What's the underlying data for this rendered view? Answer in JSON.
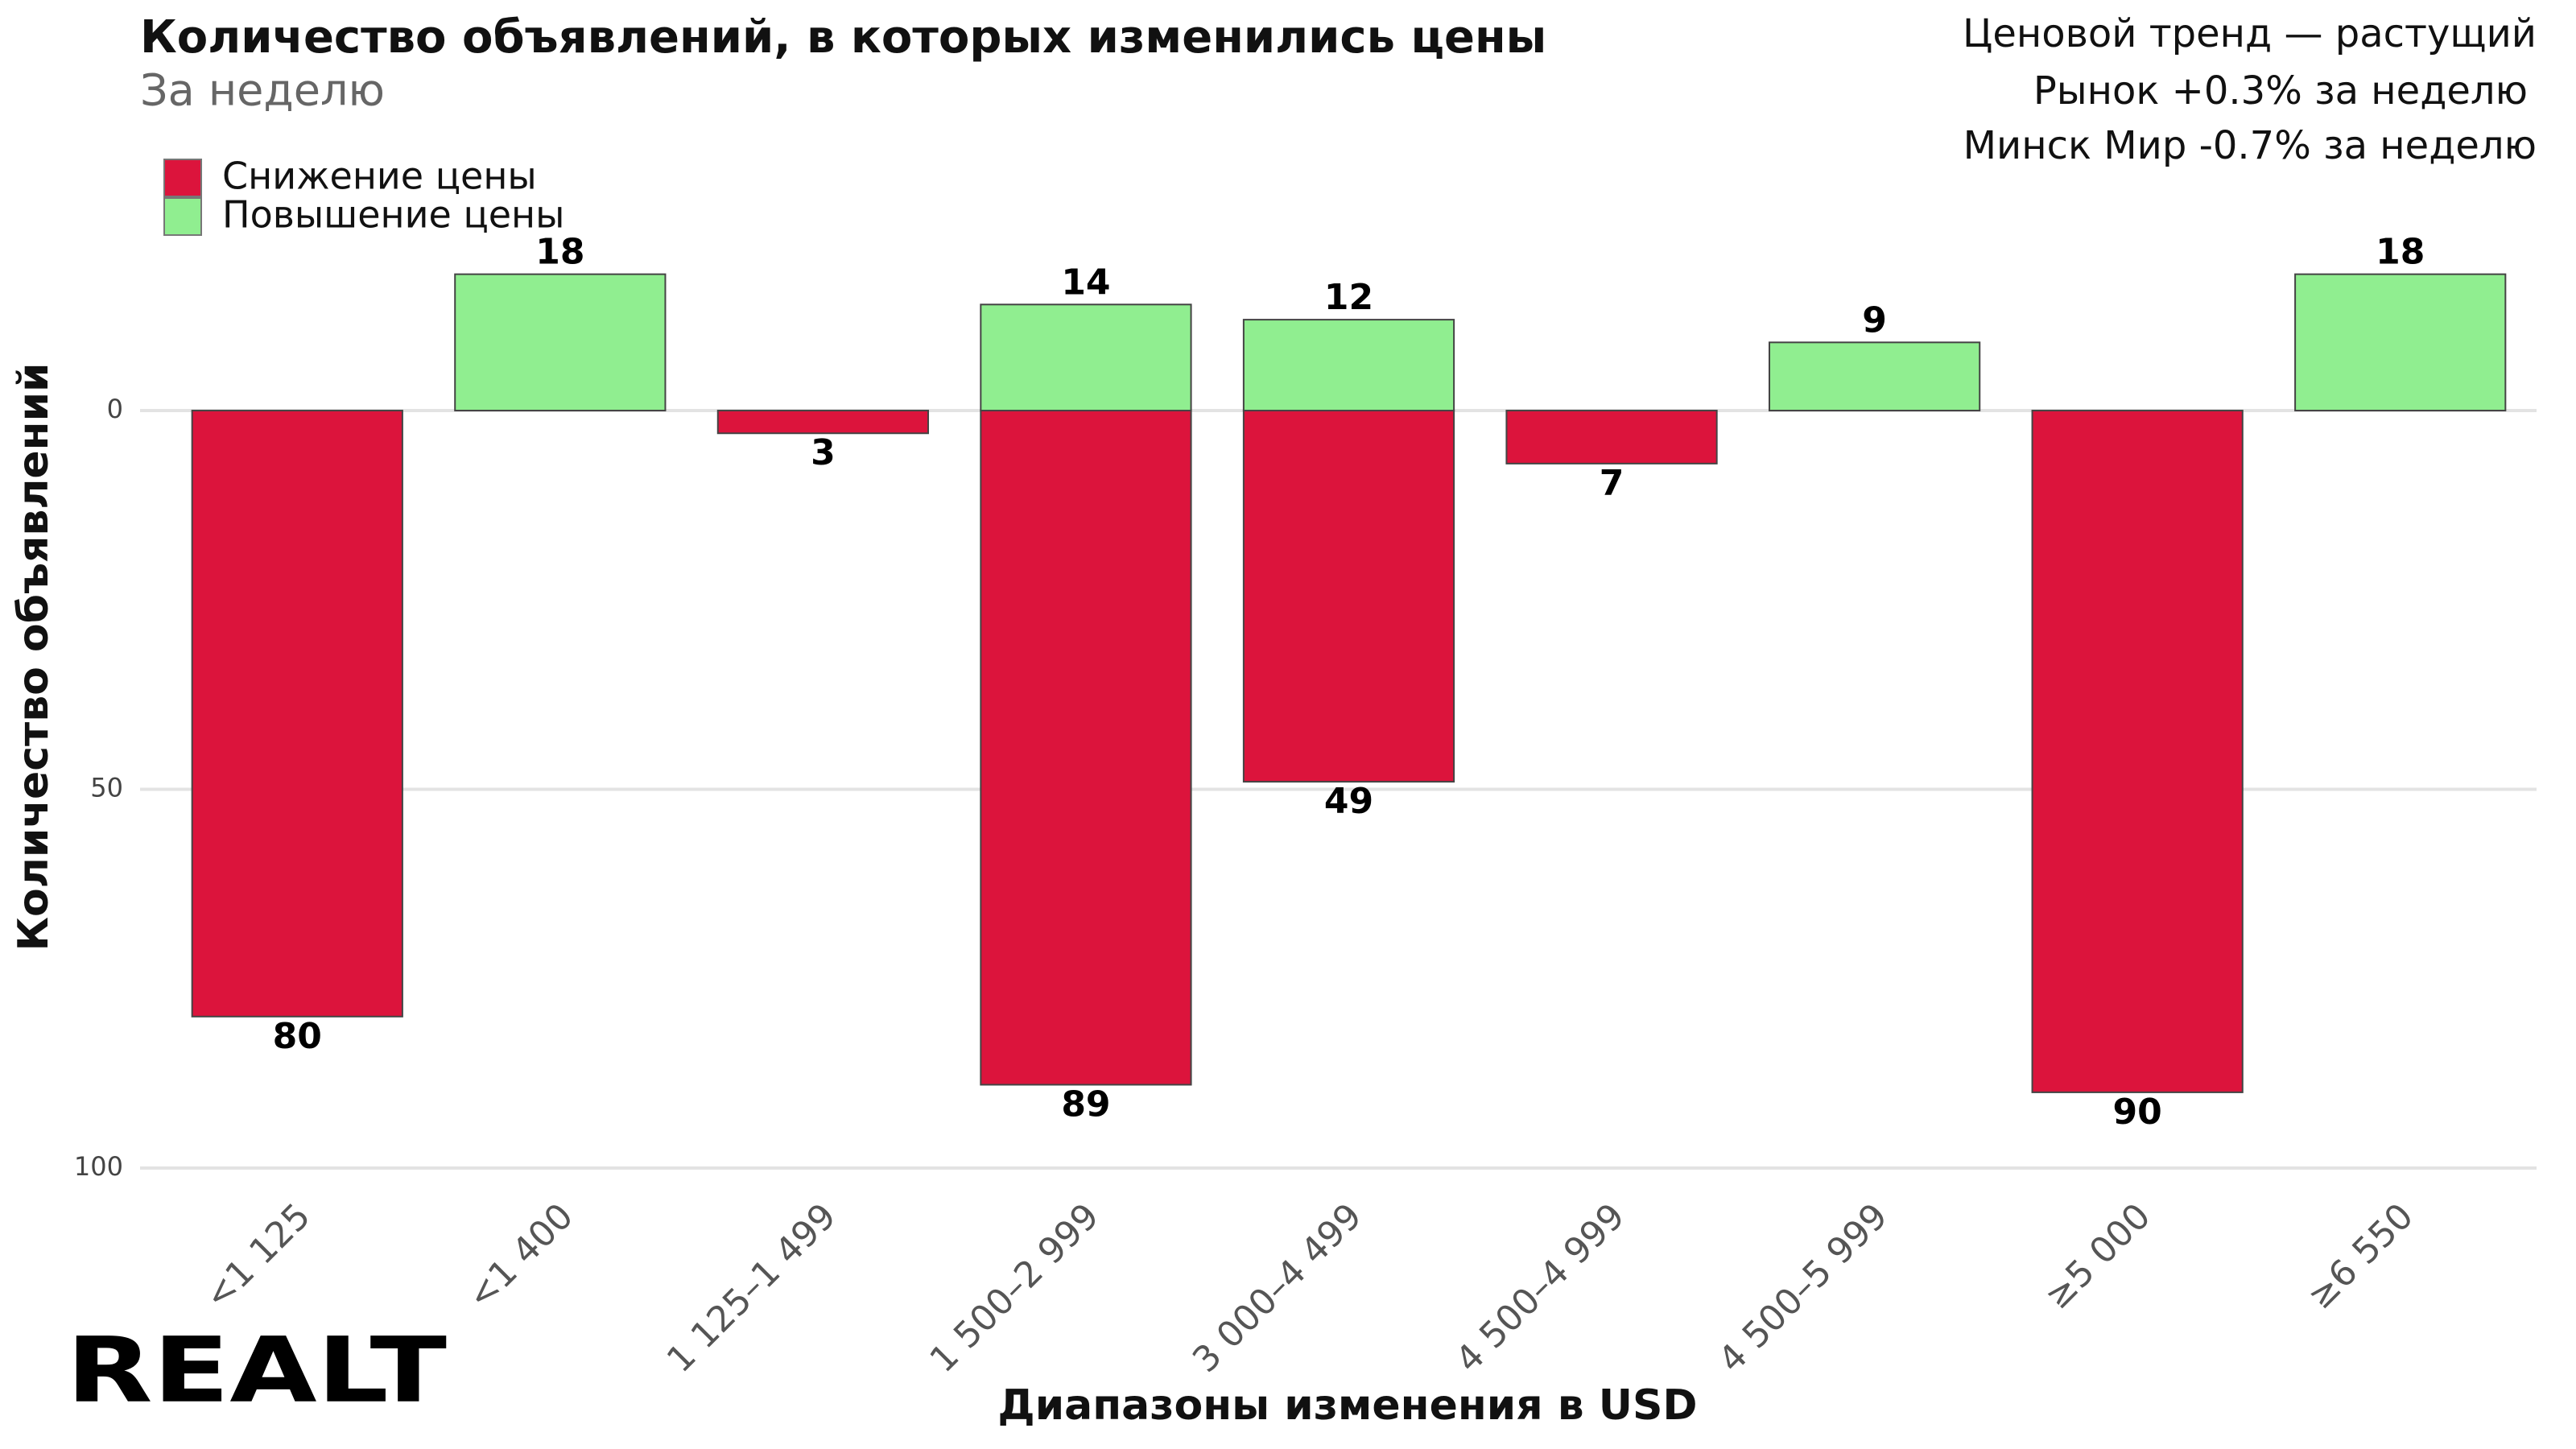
{
  "chart_data": {
    "type": "diverging-bar",
    "title": "Количество объявлений, в которых изменились цены",
    "subtitle": "За неделю",
    "annotations": [
      "Ценовой тренд — растущий",
      "Рынок +0.3% за неделю",
      "Минск Мир -0.7% за неделю"
    ],
    "x_label": "Диапазоны изменения в USD",
    "y_label": "Количество объявлений",
    "logo": "REALT",
    "categories": [
      "<1 125",
      "<1 400",
      "1 125–1 499",
      "1 500–2 999",
      "3 000–4 499",
      "4 500–4 999",
      "4 500–5 999",
      "≥5 000",
      "≥6 550"
    ],
    "series": [
      {
        "name": "Снижение цены",
        "color": "#dc143c",
        "direction": "down",
        "values": [
          80,
          null,
          3,
          89,
          49,
          7,
          null,
          90,
          null
        ]
      },
      {
        "name": "Повышение цены",
        "color": "#90ee90",
        "direction": "up",
        "values": [
          null,
          18,
          null,
          14,
          12,
          null,
          9,
          null,
          18
        ]
      }
    ],
    "ylim": [
      100,
      -22
    ],
    "yticks": [
      0,
      50,
      100
    ],
    "grid": true
  }
}
